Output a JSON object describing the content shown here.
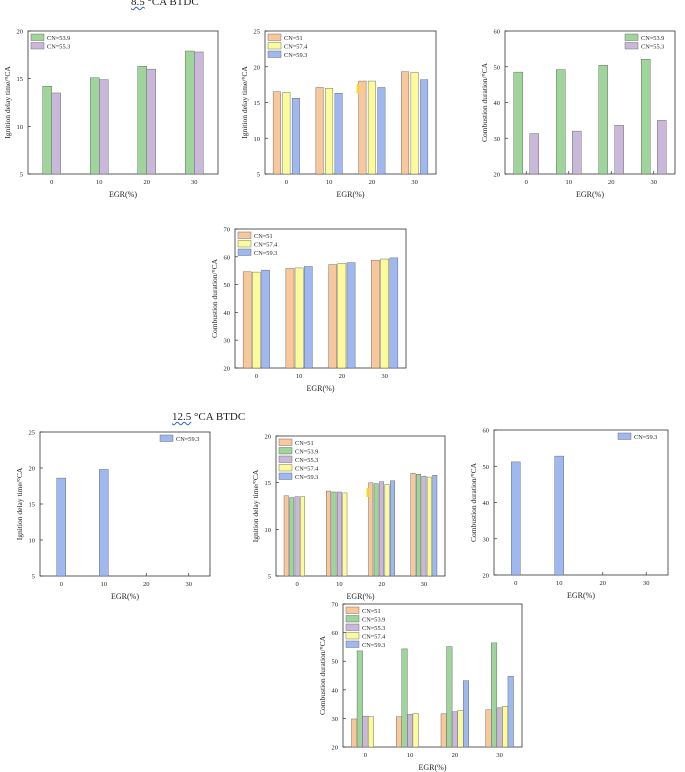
{
  "section_labels": {
    "top": {
      "number": "8.5",
      "rest": " °CA BTDC"
    },
    "bottom": {
      "number": "12.5",
      "rest": " °CA BTDC"
    }
  },
  "colors": {
    "CN=51": "#f9c79c",
    "CN=53.9": "#9fd49a",
    "CN=55.3": "#c9b8d9",
    "CN=57.4": "#fbfb9c",
    "CN=59.3": "#9fb9f0",
    "edge": "#555555",
    "marker": "#f4d81c"
  },
  "chart_data": [
    {
      "type": "bar",
      "title": "",
      "xlabel": "EGR(%)",
      "ylabel": "Ignition delay time/°CA",
      "categories": [
        "0",
        "10",
        "20",
        "30"
      ],
      "ylim": [
        5,
        20
      ],
      "yticks": [
        5,
        10,
        15,
        20
      ],
      "legend": "top-left",
      "grid": false,
      "series": [
        {
          "name": "CN=53.9",
          "values": [
            14.2,
            15.1,
            16.3,
            17.9
          ]
        },
        {
          "name": "CN=55.3",
          "values": [
            13.5,
            14.9,
            16.0,
            17.8
          ]
        }
      ]
    },
    {
      "type": "bar",
      "title": "",
      "xlabel": "EGR(%)",
      "ylabel": "Ignition delay time/°CA",
      "categories": [
        "0",
        "10",
        "20",
        "30"
      ],
      "ylim": [
        5,
        25
      ],
      "yticks": [
        5,
        10,
        15,
        20,
        25
      ],
      "legend": "top-left",
      "grid": false,
      "marker_at": "20",
      "series": [
        {
          "name": "CN=51",
          "values": [
            16.5,
            17.1,
            18.0,
            19.3
          ]
        },
        {
          "name": "CN=57.4",
          "values": [
            16.4,
            17.0,
            18.0,
            19.2
          ]
        },
        {
          "name": "CN=59.3",
          "values": [
            15.6,
            16.3,
            17.1,
            18.2
          ]
        }
      ]
    },
    {
      "type": "bar",
      "title": "",
      "xlabel": "EGR(%)",
      "ylabel": "Combustion duration/°CA",
      "categories": [
        "0",
        "10",
        "20",
        "30"
      ],
      "ylim": [
        20,
        60
      ],
      "yticks": [
        20,
        30,
        40,
        50,
        60
      ],
      "legend": "top-right",
      "grid": false,
      "series": [
        {
          "name": "CN=53.9",
          "values": [
            48.5,
            49.2,
            50.4,
            52.1
          ]
        },
        {
          "name": "CN=55.3",
          "values": [
            31.3,
            32.0,
            33.6,
            35.0
          ]
        }
      ]
    },
    {
      "type": "bar",
      "title": "",
      "xlabel": "EGR(%)",
      "ylabel": "Combustion duration/°CA",
      "categories": [
        "0",
        "10",
        "20",
        "30"
      ],
      "ylim": [
        20,
        70
      ],
      "yticks": [
        20,
        30,
        40,
        50,
        60,
        70
      ],
      "legend": "top-left",
      "grid": false,
      "series": [
        {
          "name": "CN=51",
          "values": [
            54.6,
            55.8,
            57.2,
            58.8
          ]
        },
        {
          "name": "CN=57.4",
          "values": [
            54.5,
            56.0,
            57.6,
            59.2
          ]
        },
        {
          "name": "CN=59.3",
          "values": [
            55.2,
            56.5,
            57.9,
            59.6
          ]
        }
      ]
    },
    {
      "type": "bar",
      "title": "",
      "xlabel": "EGR(%)",
      "ylabel": "Ignition delay time/°CA",
      "categories": [
        "0",
        "10",
        "20",
        "30"
      ],
      "ylim": [
        5,
        25
      ],
      "yticks": [
        5,
        10,
        15,
        20,
        25
      ],
      "legend": "top-right",
      "grid": false,
      "series": [
        {
          "name": "CN=59.3",
          "values": [
            18.6,
            19.8,
            null,
            null
          ]
        }
      ]
    },
    {
      "type": "bar",
      "title": "",
      "xlabel": "EGR(%)",
      "ylabel": "Ignition delay time/°CA",
      "categories": [
        "0",
        "10",
        "20",
        "30"
      ],
      "ylim": [
        5,
        20
      ],
      "yticks": [
        5,
        10,
        15,
        20
      ],
      "legend": "top-left",
      "grid": false,
      "marker_at": "20",
      "series": [
        {
          "name": "CN=51",
          "values": [
            13.6,
            14.1,
            15.0,
            16.0
          ]
        },
        {
          "name": "CN=53.9",
          "values": [
            13.4,
            14.0,
            14.9,
            15.9
          ]
        },
        {
          "name": "CN=55.3",
          "values": [
            13.5,
            14.0,
            15.1,
            15.7
          ]
        },
        {
          "name": "CN=57.4",
          "values": [
            13.5,
            13.9,
            14.8,
            15.6
          ]
        },
        {
          "name": "CN=59.3",
          "values": [
            null,
            null,
            15.2,
            15.8
          ]
        }
      ]
    },
    {
      "type": "bar",
      "title": "",
      "xlabel": "EGR(%)",
      "ylabel": "Combustion duration/°CA",
      "categories": [
        "0",
        "10",
        "20",
        "30"
      ],
      "ylim": [
        20,
        60
      ],
      "yticks": [
        20,
        30,
        40,
        50,
        60
      ],
      "legend": "top-right",
      "grid": false,
      "series": [
        {
          "name": "CN=59.3",
          "values": [
            51.2,
            52.8,
            null,
            null
          ]
        }
      ]
    },
    {
      "type": "bar",
      "title": "",
      "xlabel": "EGR(%)",
      "ylabel": "Combustion duration/°CA",
      "categories": [
        "0",
        "10",
        "20",
        "30"
      ],
      "ylim": [
        20,
        70
      ],
      "yticks": [
        20,
        30,
        40,
        50,
        60,
        70
      ],
      "legend": "top-left",
      "grid": false,
      "series": [
        {
          "name": "CN=51",
          "values": [
            29.8,
            30.6,
            31.6,
            33.0
          ]
        },
        {
          "name": "CN=53.9",
          "values": [
            53.6,
            54.3,
            55.1,
            56.4
          ]
        },
        {
          "name": "CN=55.3",
          "values": [
            30.8,
            31.4,
            32.3,
            33.7
          ]
        },
        {
          "name": "CN=57.4",
          "values": [
            30.6,
            31.7,
            32.8,
            34.2
          ]
        },
        {
          "name": "CN=59.3",
          "values": [
            null,
            null,
            43.2,
            44.7
          ]
        }
      ]
    }
  ]
}
